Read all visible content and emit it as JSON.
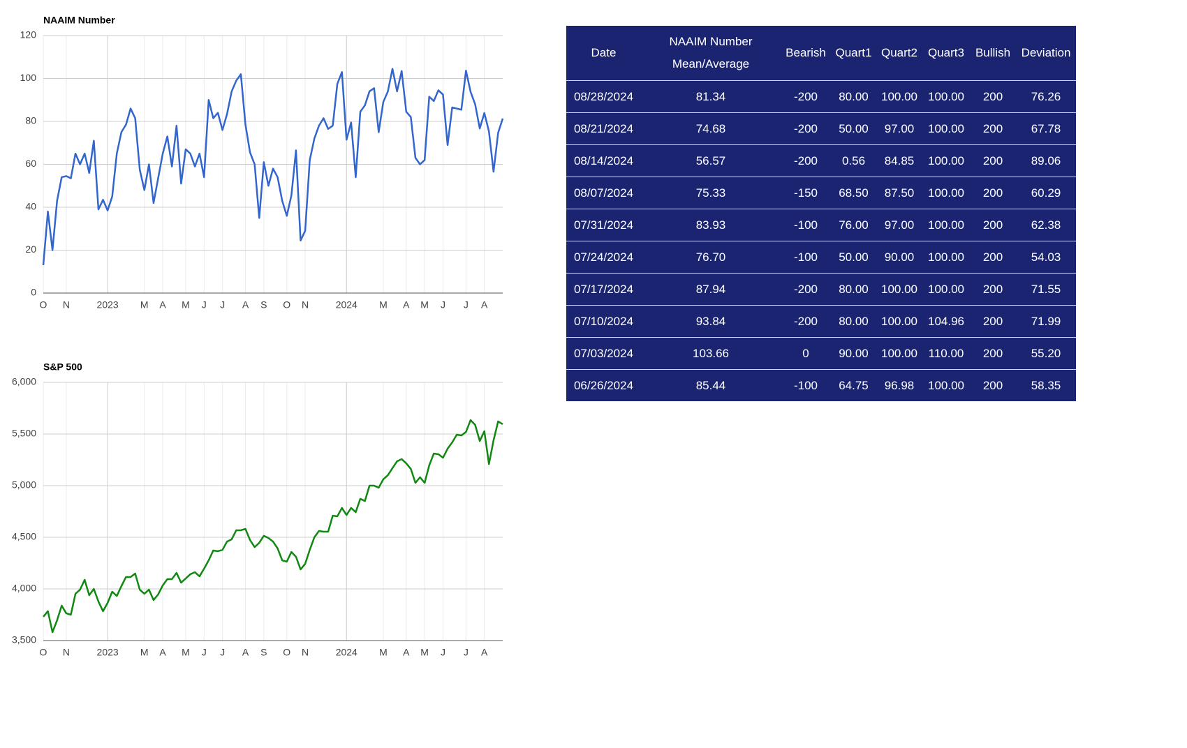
{
  "chart_data": [
    {
      "type": "line",
      "title": "NAAIM Number",
      "color": "#3366cc",
      "categories": [
        "O",
        null,
        null,
        null,
        null,
        "N",
        null,
        null,
        null,
        null,
        null,
        null,
        null,
        null,
        "2023",
        null,
        null,
        null,
        null,
        null,
        null,
        null,
        "M",
        null,
        null,
        null,
        "A",
        null,
        null,
        null,
        null,
        "M",
        null,
        null,
        null,
        "J",
        null,
        null,
        null,
        "J",
        null,
        null,
        null,
        null,
        "A",
        null,
        null,
        null,
        "S",
        null,
        null,
        null,
        null,
        "O",
        null,
        null,
        null,
        "N",
        null,
        null,
        null,
        null,
        null,
        null,
        null,
        null,
        "2024",
        null,
        null,
        null,
        null,
        null,
        null,
        null,
        "M",
        null,
        null,
        null,
        null,
        "A",
        null,
        null,
        null,
        "M",
        null,
        null,
        null,
        "J",
        null,
        null,
        null,
        null,
        "J",
        null,
        null,
        null,
        "A",
        null,
        null,
        null,
        null
      ],
      "values": [
        13,
        38,
        20,
        43,
        54,
        54.5,
        53.5,
        65,
        60,
        65,
        56,
        71,
        39,
        43.5,
        38.5,
        45,
        65,
        75,
        78.5,
        86,
        81.5,
        57.5,
        48,
        60,
        42,
        53.5,
        65,
        73,
        59,
        78,
        51,
        67,
        65,
        59,
        65,
        54,
        90,
        81.5,
        84,
        76,
        83.5,
        94,
        99,
        102,
        78.5,
        65.5,
        60,
        35,
        61,
        50,
        58,
        54,
        43,
        36,
        45.5,
        66.5,
        24.5,
        29,
        62,
        72,
        78,
        81.5,
        76.5,
        78,
        97.5,
        103,
        71.5,
        79.5,
        54,
        84.5,
        87.5,
        94,
        95.5,
        75,
        89,
        94,
        104.5,
        94,
        103.5,
        84.5,
        82,
        63,
        60,
        62,
        91.5,
        89.5,
        94.5,
        92.5,
        69,
        86.5,
        86,
        85.44,
        103.66,
        93.84,
        87.94,
        76.7,
        83.93,
        75.33,
        56.57,
        74.68,
        81.34
      ],
      "ylim": [
        0,
        120
      ],
      "yticks": [
        0,
        20,
        40,
        60,
        80,
        100,
        120
      ],
      "grid": true
    },
    {
      "type": "line",
      "title": "S&P 500",
      "color": "#118811",
      "categories": [
        "O",
        null,
        null,
        null,
        null,
        "N",
        null,
        null,
        null,
        null,
        null,
        null,
        null,
        null,
        "2023",
        null,
        null,
        null,
        null,
        null,
        null,
        null,
        "M",
        null,
        null,
        null,
        "A",
        null,
        null,
        null,
        null,
        "M",
        null,
        null,
        null,
        "J",
        null,
        null,
        null,
        "J",
        null,
        null,
        null,
        null,
        "A",
        null,
        null,
        null,
        "S",
        null,
        null,
        null,
        null,
        "O",
        null,
        null,
        null,
        "N",
        null,
        null,
        null,
        null,
        null,
        null,
        null,
        null,
        "2024",
        null,
        null,
        null,
        null,
        null,
        null,
        null,
        "M",
        null,
        null,
        null,
        null,
        "A",
        null,
        null,
        null,
        "M",
        null,
        null,
        null,
        "J",
        null,
        null,
        null,
        null,
        "J",
        null,
        null,
        null,
        "A",
        null,
        null,
        null,
        null
      ],
      "values": [
        3730,
        3784,
        3581,
        3696,
        3838,
        3764,
        3750,
        3953,
        3993,
        4088,
        3939,
        4000,
        3878,
        3784,
        3865,
        3973,
        3932,
        4027,
        4115,
        4115,
        4149,
        3993,
        3953,
        3993,
        3892,
        3946,
        4034,
        4095,
        4095,
        4155,
        4061,
        4101,
        4142,
        4162,
        4122,
        4196,
        4277,
        4372,
        4365,
        4378,
        4459,
        4480,
        4568,
        4568,
        4581,
        4473,
        4405,
        4446,
        4514,
        4493,
        4459,
        4392,
        4277,
        4264,
        4358,
        4311,
        4189,
        4243,
        4378,
        4500,
        4561,
        4554,
        4554,
        4709,
        4703,
        4784,
        4716,
        4784,
        4743,
        4872,
        4851,
        5000,
        5000,
        4980,
        5061,
        5101,
        5169,
        5236,
        5257,
        5216,
        5162,
        5027,
        5081,
        5027,
        5196,
        5311,
        5304,
        5270,
        5358,
        5419,
        5493,
        5486,
        5520,
        5635,
        5588,
        5432,
        5527,
        5209,
        5439,
        5622,
        5595
      ],
      "ylim": [
        3500,
        6000
      ],
      "yticks": [
        {
          "value": 3500,
          "label": "3,500"
        },
        {
          "value": 4000,
          "label": "4,000"
        },
        {
          "value": 4500,
          "label": "4,500"
        },
        {
          "value": 5000,
          "label": "5,000"
        },
        {
          "value": 5500,
          "label": "5,500"
        },
        {
          "value": 6000,
          "label": "6,000"
        }
      ],
      "grid": true
    }
  ],
  "table": {
    "header": [
      "Date",
      "NAAIM Number Mean/Average",
      "Bearish",
      "Quart1",
      "Quart2",
      "Quart3",
      "Bullish",
      "Deviation"
    ],
    "rows": [
      [
        "08/28/2024",
        "81.34",
        "-200",
        "80.00",
        "100.00",
        "100.00",
        "200",
        "76.26"
      ],
      [
        "08/21/2024",
        "74.68",
        "-200",
        "50.00",
        "97.00",
        "100.00",
        "200",
        "67.78"
      ],
      [
        "08/14/2024",
        "56.57",
        "-200",
        "0.56",
        "84.85",
        "100.00",
        "200",
        "89.06"
      ],
      [
        "08/07/2024",
        "75.33",
        "-150",
        "68.50",
        "87.50",
        "100.00",
        "200",
        "60.29"
      ],
      [
        "07/31/2024",
        "83.93",
        "-100",
        "76.00",
        "97.00",
        "100.00",
        "200",
        "62.38"
      ],
      [
        "07/24/2024",
        "76.70",
        "-100",
        "50.00",
        "90.00",
        "100.00",
        "200",
        "54.03"
      ],
      [
        "07/17/2024",
        "87.94",
        "-200",
        "80.00",
        "100.00",
        "100.00",
        "200",
        "71.55"
      ],
      [
        "07/10/2024",
        "93.84",
        "-200",
        "80.00",
        "100.00",
        "104.96",
        "200",
        "71.99"
      ],
      [
        "07/03/2024",
        "103.66",
        "0",
        "90.00",
        "100.00",
        "110.00",
        "200",
        "55.20"
      ],
      [
        "06/26/2024",
        "85.44",
        "-100",
        "64.75",
        "96.98",
        "100.00",
        "200",
        "58.35"
      ]
    ]
  }
}
